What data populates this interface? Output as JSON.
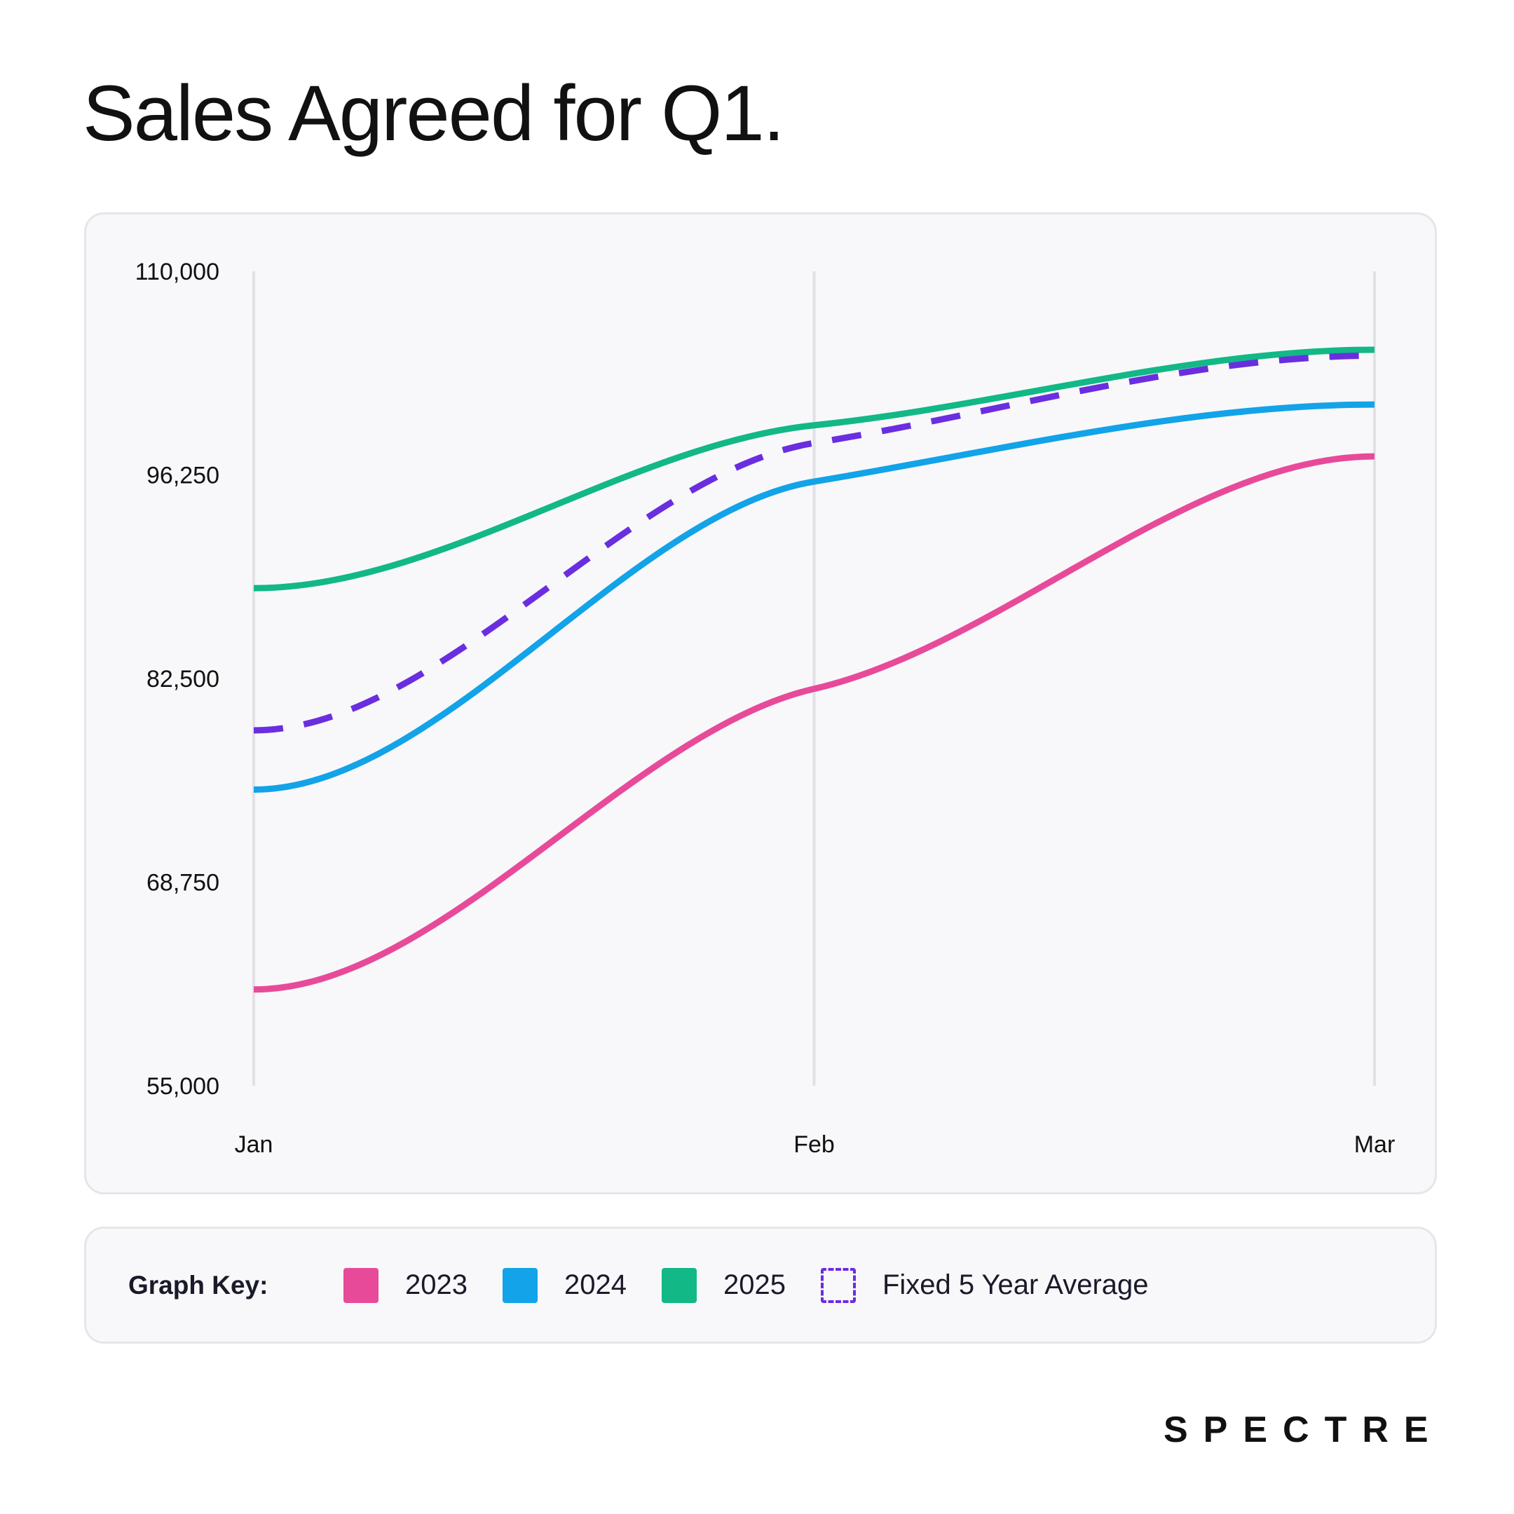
{
  "title": "Sales Agreed for Q1.",
  "brand": "SPECTRE",
  "legend": {
    "title": "Graph Key:",
    "items": [
      {
        "label": "2023",
        "color": "#e84a9a",
        "style": "solid"
      },
      {
        "label": "2024",
        "color": "#12a3e8",
        "style": "solid"
      },
      {
        "label": "2025",
        "color": "#12b886",
        "style": "solid"
      },
      {
        "label": "Fixed 5 Year Average",
        "color": "#6a2ee0",
        "style": "dashed"
      }
    ]
  },
  "chart_data": {
    "type": "line",
    "x": [
      "Jan",
      "Feb",
      "Mar"
    ],
    "ylim": [
      55000,
      110000
    ],
    "yticks": [
      "110,000",
      "96,250",
      "82,500",
      "68,750",
      "55,000"
    ],
    "ytick_values": [
      110000,
      96250,
      82500,
      68750,
      55000
    ],
    "grid": "vertical",
    "series": [
      {
        "name": "2023",
        "values": [
          61500,
          81800,
          97500
        ],
        "color": "#e84a9a",
        "dash": false
      },
      {
        "name": "2024",
        "values": [
          75000,
          95800,
          101000
        ],
        "color": "#12a3e8",
        "dash": false
      },
      {
        "name": "2025",
        "values": [
          88600,
          99600,
          104700
        ],
        "color": "#12b886",
        "dash": false
      },
      {
        "name": "Fixed 5 Year Average",
        "values": [
          79000,
          98400,
          104300
        ],
        "color": "#6a2ee0",
        "dash": true
      }
    ]
  }
}
